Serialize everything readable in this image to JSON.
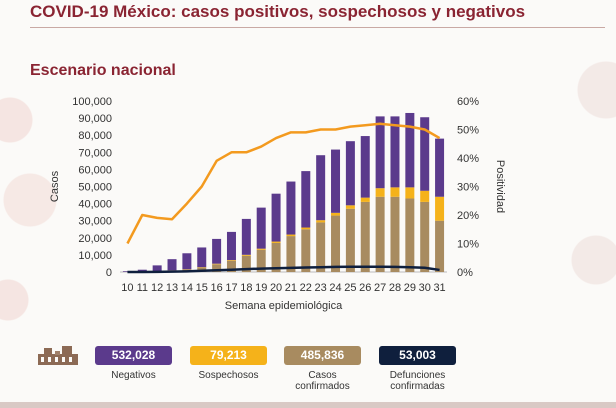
{
  "title": "COVID-19 México: casos positivos, sospechosos y negativos",
  "subtitle": "Escenario nacional",
  "colors": {
    "negativos": "#5b3a8c",
    "sospechosos": "#f5b21a",
    "confirmados": "#a88b60",
    "defunciones": "#0f1f3d",
    "positividad": "#f39a1f"
  },
  "chart_data": {
    "type": "bar",
    "stacked": true,
    "xlabel": "Semana epidemiológica",
    "ylabel": "Casos",
    "y2label": "Positividad",
    "categories": [
      "10",
      "11",
      "12",
      "13",
      "14",
      "15",
      "16",
      "17",
      "18",
      "19",
      "20",
      "21",
      "22",
      "23",
      "24",
      "25",
      "26",
      "27",
      "28",
      "29",
      "30",
      "31"
    ],
    "ylim": [
      0,
      100000
    ],
    "y2lim": [
      0,
      60
    ],
    "yticks": [
      "0",
      "10,000",
      "20,000",
      "30,000",
      "40,000",
      "50,000",
      "60,000",
      "70,000",
      "80,000",
      "90,000",
      "100,000"
    ],
    "y2ticks": [
      "0%",
      "10%",
      "20%",
      "30%",
      "40%",
      "50%",
      "60%"
    ],
    "series": [
      {
        "name": "Casos confirmados",
        "values": [
          50,
          200,
          500,
          900,
          1500,
          2600,
          4500,
          6500,
          9500,
          13000,
          17000,
          21000,
          25000,
          29000,
          33000,
          37000,
          41000,
          44000,
          44000,
          43000,
          41000,
          30000
        ]
      },
      {
        "name": "Sospechosos",
        "values": [
          10,
          40,
          70,
          100,
          150,
          250,
          350,
          450,
          550,
          650,
          800,
          900,
          1000,
          1300,
          1600,
          2000,
          2500,
          5000,
          5500,
          6500,
          6500,
          14000
        ]
      },
      {
        "name": "Negativos",
        "values": [
          400,
          1100,
          3300,
          6500,
          9300,
          11500,
          14500,
          16500,
          21000,
          24000,
          28000,
          31000,
          33000,
          38000,
          37000,
          37500,
          36000,
          42000,
          41500,
          43500,
          43000,
          34000
        ]
      },
      {
        "name": "Defunciones",
        "type": "line",
        "values": [
          0,
          0,
          100,
          200,
          400,
          700,
          1000,
          1300,
          1700,
          2000,
          2200,
          2400,
          2600,
          2800,
          3000,
          3100,
          3100,
          3100,
          3000,
          2800,
          2500,
          1200
        ]
      },
      {
        "name": "Positividad",
        "type": "line",
        "axis": "y2",
        "values": [
          10,
          20,
          19,
          18.5,
          24,
          30,
          39,
          42,
          42,
          44,
          47,
          49,
          49,
          50,
          50,
          51,
          51.5,
          52,
          51.5,
          51,
          50,
          47
        ]
      }
    ]
  },
  "summary": [
    {
      "value": "532,028",
      "label": "Negativos",
      "color": "#5b3a8c",
      "text_color": "#ffffff"
    },
    {
      "value": "79,213",
      "label": "Sospechosos",
      "color": "#f5b21a",
      "text_color": "#ffffff"
    },
    {
      "value": "485,836",
      "label": "Casos confirmados",
      "color": "#a88b60",
      "text_color": "#ffffff"
    },
    {
      "value": "53,003",
      "label": "Defunciones confirmadas",
      "color": "#0f1f3d",
      "text_color": "#ffffff"
    }
  ]
}
